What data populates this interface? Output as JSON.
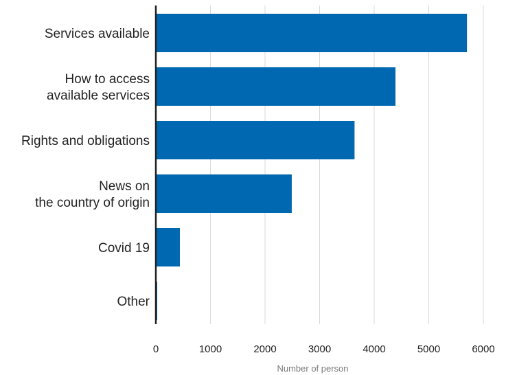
{
  "chart_data": {
    "type": "bar",
    "orientation": "horizontal",
    "categories": [
      [
        "Services available"
      ],
      [
        "How to access ",
        "available services"
      ],
      [
        "Rights and obligations"
      ],
      [
        "News on ",
        "the country of origin"
      ],
      [
        "Covid 19"
      ],
      [
        "Other"
      ]
    ],
    "values": [
      5700,
      4390,
      3640,
      2490,
      440,
      20
    ],
    "xlabel": "Number of person",
    "ylabel": "",
    "xlim": [
      0,
      6000
    ],
    "xticks": [
      "0",
      "1000",
      "2000",
      "3000",
      "4000",
      "5000",
      "6000"
    ],
    "grid": "vertical",
    "bar_color": "#0067b1",
    "axis_color": "#222222",
    "grid_color": "#d9d9d9"
  }
}
